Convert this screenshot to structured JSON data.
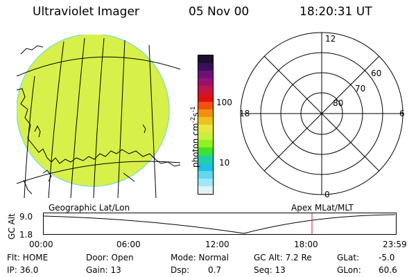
{
  "header": {
    "instrument": "Ultraviolet Imager",
    "date": "05 Nov 00",
    "time": "18:20:31 UT"
  },
  "geo_map": {
    "label": "Geographic Lat/Lon",
    "fill_color": "#d8f04a"
  },
  "colorbar": {
    "unit_main": "photon cm",
    "unit_sup1": "-2",
    "unit_mid": "s",
    "unit_sup2": "-1",
    "ticks": [
      "100",
      "10"
    ],
    "colors": [
      "#1a1030",
      "#3a1058",
      "#6a1278",
      "#9a1070",
      "#c01840",
      "#e01010",
      "#f05010",
      "#f09010",
      "#f0c020",
      "#e8e840",
      "#c8f040",
      "#90f020",
      "#40e030",
      "#20d0a0",
      "#20c0e0",
      "#60d8f0",
      "#a0e8f8",
      "#e0f4f8"
    ]
  },
  "polar": {
    "label": "Apex MLat/MLT",
    "mlt_labels": {
      "top": "12",
      "left": "18",
      "right": "6",
      "bottom": "0"
    },
    "lat_labels": [
      "60",
      "70",
      "80"
    ]
  },
  "timeline": {
    "ylabel": "GC Alt",
    "y_ticks": [
      "9.0",
      "1.8"
    ],
    "x_ticks": [
      "00:00",
      "06:00",
      "12:00",
      "18:00",
      "23:59"
    ],
    "current_time_marker_color": "#e02020"
  },
  "info": {
    "flt": "Flt: HOME",
    "ip": "IP: 36.0",
    "door": "Door: Open",
    "gain": "Gain: 13",
    "mode": "Mode: Normal",
    "dsp_label": "Dsp:",
    "dsp_value": "0.7",
    "gc_alt": "GC Alt: 7.2 Re",
    "seq": "Seq: 13",
    "glat_label": "GLat:",
    "glat_value": "-5.0",
    "glon_label": "GLon:",
    "glon_value": "60.6"
  }
}
